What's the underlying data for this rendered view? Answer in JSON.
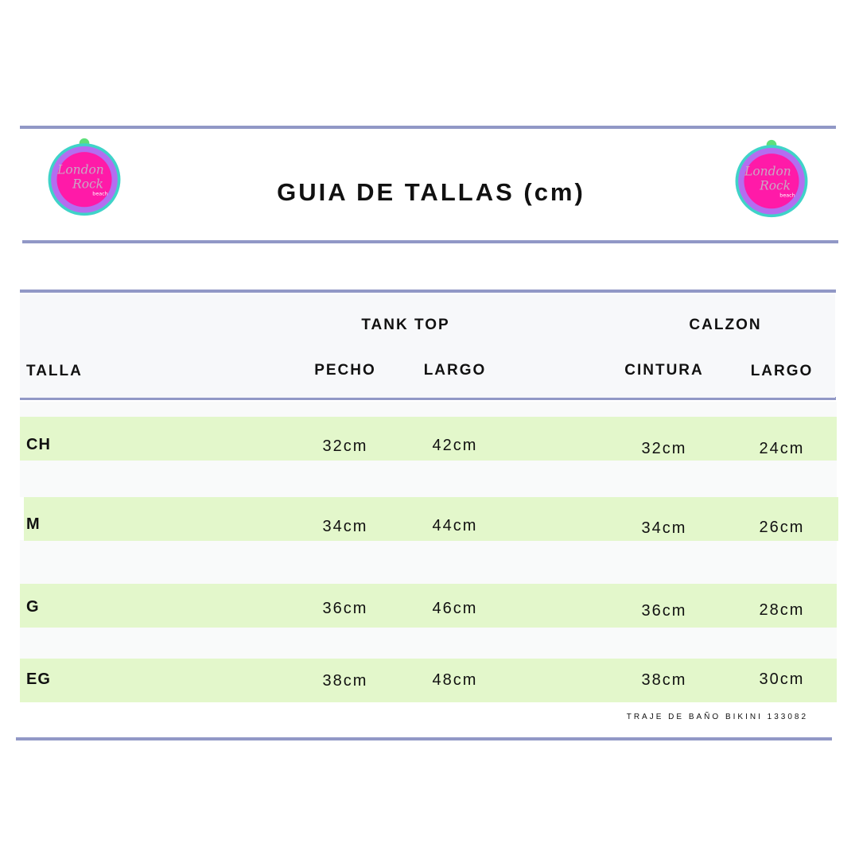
{
  "logo": {
    "text_line1": "London",
    "text_line2": "Rock",
    "text_line3": "beach"
  },
  "title": "GUIA DE TALLAS (cm)",
  "table": {
    "groups": [
      "TANK TOP",
      "CALZON"
    ],
    "columns": [
      "TALLA",
      "PECHO",
      "LARGO",
      "CINTURA",
      "LARGO"
    ],
    "rows": [
      {
        "size": "CH",
        "values": [
          "32cm",
          "42cm",
          "32cm",
          "24cm"
        ]
      },
      {
        "size": "M",
        "values": [
          "34cm",
          "44cm",
          "34cm",
          "26cm"
        ]
      },
      {
        "size": "G",
        "values": [
          "36cm",
          "46cm",
          "36cm",
          "28cm"
        ]
      },
      {
        "size": "EG",
        "values": [
          "38cm",
          "48cm",
          "38cm",
          "30cm"
        ]
      }
    ]
  },
  "footer": "TRAJE DE BAÑO BIKINI 133082",
  "colors": {
    "rule": "#9198c6",
    "row_highlight": "#e3f7cb",
    "logo_pink": "#ff1aa8"
  }
}
